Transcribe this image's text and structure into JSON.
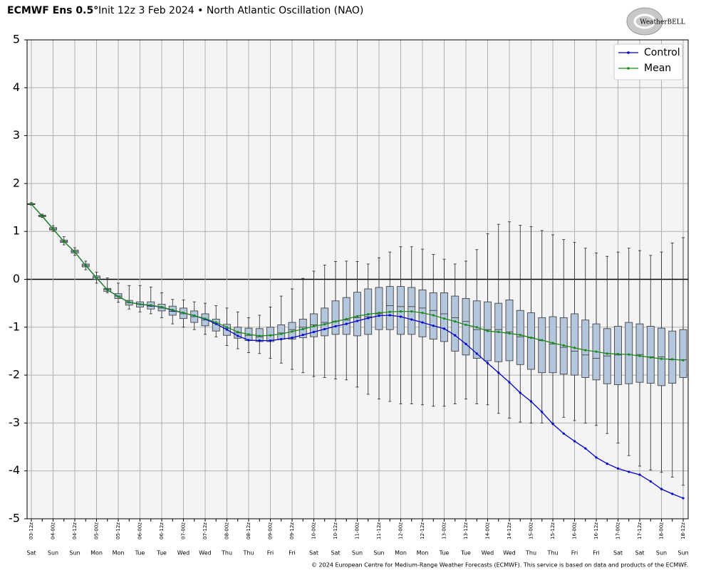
{
  "chart_data": {
    "type": "box",
    "title": "ECMWF Ens 0.5°",
    "subtitle": "Init 12z 3 Feb 2024 • North Atlantic Oscillation (NAO)",
    "logo": "WeatherBELL",
    "credit": "© 2024 European Centre for Medium-Range Weather Forecasts (ECMWF). This service is based on data and products of the ECMWF.",
    "categories": [
      "03-12z",
      null,
      "04-00z",
      null,
      "04-12z",
      null,
      "05-00z",
      null,
      "05-12z",
      null,
      "06-00z",
      null,
      "06-12z",
      null,
      "07-00z",
      null,
      "07-12z",
      null,
      "08-00z",
      null,
      "08-12z",
      null,
      "09-00z",
      null,
      "09-12z",
      null,
      "10-00z",
      null,
      "10-12z",
      null,
      "11-00z",
      null,
      "11-12z",
      null,
      "12-00z",
      null,
      "12-12z",
      null,
      "13-00z",
      null,
      "13-12z",
      null,
      "14-00z",
      null,
      "14-12z",
      null,
      "15-00z",
      null,
      "15-12z",
      null,
      "16-00z",
      null,
      "16-12z",
      null,
      "17-00z",
      null,
      "17-12z",
      null,
      "18-00z",
      null,
      "18-12z"
    ],
    "day_labels": [
      "Sat",
      null,
      "Sun",
      null,
      "Sun",
      null,
      "Mon",
      null,
      "Mon",
      null,
      "Tue",
      null,
      "Tue",
      null,
      "Wed",
      null,
      "Wed",
      null,
      "Thu",
      null,
      "Thu",
      null,
      "Fri",
      null,
      "Fri",
      null,
      "Sat",
      null,
      "Sat",
      null,
      "Sun",
      null,
      "Sun",
      null,
      "Mon",
      null,
      "Mon",
      null,
      "Tue",
      null,
      "Tue",
      null,
      "Wed",
      null,
      "Wed",
      null,
      "Thu",
      null,
      "Thu",
      null,
      "Fri",
      null,
      "Fri",
      null,
      "Sat",
      null,
      "Sat",
      null,
      "Sun",
      null,
      "Sun"
    ],
    "ylim": [
      -5,
      5
    ],
    "yticks": [
      -5,
      -4,
      -3,
      -2,
      -1,
      0,
      1,
      2,
      3,
      4,
      5
    ],
    "grid": true,
    "legend": "upper right",
    "box_color": "#b4c6dc",
    "boxes": [
      {
        "min": 1.55,
        "q1": 1.56,
        "median": 1.57,
        "q3": 1.58,
        "max": 1.6
      },
      {
        "min": 1.29,
        "q1": 1.31,
        "median": 1.32,
        "q3": 1.34,
        "max": 1.36
      },
      {
        "min": 1.0,
        "q1": 1.03,
        "median": 1.05,
        "q3": 1.08,
        "max": 1.12
      },
      {
        "min": 0.72,
        "q1": 0.77,
        "median": 0.79,
        "q3": 0.82,
        "max": 0.89
      },
      {
        "min": 0.5,
        "q1": 0.55,
        "median": 0.58,
        "q3": 0.61,
        "max": 0.66
      },
      {
        "min": 0.2,
        "q1": 0.26,
        "median": 0.29,
        "q3": 0.32,
        "max": 0.38
      },
      {
        "min": -0.08,
        "q1": 0.0,
        "median": 0.04,
        "q3": 0.07,
        "max": 0.15
      },
      {
        "min": -0.28,
        "q1": -0.25,
        "median": -0.21,
        "q3": -0.19,
        "max": 0.03
      },
      {
        "min": -0.48,
        "q1": -0.4,
        "median": -0.35,
        "q3": -0.3,
        "max": -0.08
      },
      {
        "min": -0.62,
        "q1": -0.54,
        "median": -0.49,
        "q3": -0.44,
        "max": -0.13
      },
      {
        "min": -0.68,
        "q1": -0.58,
        "median": -0.52,
        "q3": -0.47,
        "max": -0.13
      },
      {
        "min": -0.72,
        "q1": -0.62,
        "median": -0.56,
        "q3": -0.47,
        "max": -0.16
      },
      {
        "min": -0.8,
        "q1": -0.66,
        "median": -0.6,
        "q3": -0.52,
        "max": -0.28
      },
      {
        "min": -0.93,
        "q1": -0.75,
        "median": -0.67,
        "q3": -0.56,
        "max": -0.42
      },
      {
        "min": -1.0,
        "q1": -0.82,
        "median": -0.72,
        "q3": -0.6,
        "max": -0.43
      },
      {
        "min": -1.05,
        "q1": -0.9,
        "median": -0.78,
        "q3": -0.66,
        "max": -0.47
      },
      {
        "min": -1.15,
        "q1": -0.97,
        "median": -0.85,
        "q3": -0.72,
        "max": -0.5
      },
      {
        "min": -1.2,
        "q1": -1.08,
        "median": -0.92,
        "q3": -0.83,
        "max": -0.55
      },
      {
        "min": -1.38,
        "q1": -1.17,
        "median": -1.02,
        "q3": -0.94,
        "max": -0.6
      },
      {
        "min": -1.45,
        "q1": -1.23,
        "median": -1.12,
        "q3": -1.0,
        "max": -0.68
      },
      {
        "min": -1.53,
        "q1": -1.28,
        "median": -1.17,
        "q3": -1.02,
        "max": -0.8
      },
      {
        "min": -1.55,
        "q1": -1.3,
        "median": -1.2,
        "q3": -1.03,
        "max": -0.75
      },
      {
        "min": -1.65,
        "q1": -1.3,
        "median": -1.17,
        "q3": -1.0,
        "max": -0.58
      },
      {
        "min": -1.75,
        "q1": -1.25,
        "median": -1.12,
        "q3": -0.95,
        "max": -0.35
      },
      {
        "min": -1.88,
        "q1": -1.25,
        "median": -1.05,
        "q3": -0.9,
        "max": -0.2
      },
      {
        "min": -1.95,
        "q1": -1.22,
        "median": -1.0,
        "q3": -0.83,
        "max": 0.02
      },
      {
        "min": -2.03,
        "q1": -1.2,
        "median": -0.95,
        "q3": -0.72,
        "max": 0.17
      },
      {
        "min": -2.05,
        "q1": -1.18,
        "median": -0.9,
        "q3": -0.6,
        "max": 0.3
      },
      {
        "min": -2.08,
        "q1": -1.15,
        "median": -0.88,
        "q3": -0.45,
        "max": 0.37
      },
      {
        "min": -2.1,
        "q1": -1.15,
        "median": -0.85,
        "q3": -0.38,
        "max": 0.38
      },
      {
        "min": -2.25,
        "q1": -1.18,
        "median": -0.8,
        "q3": -0.27,
        "max": 0.37
      },
      {
        "min": -2.4,
        "q1": -1.15,
        "median": -0.78,
        "q3": -0.2,
        "max": 0.32
      },
      {
        "min": -2.5,
        "q1": -1.05,
        "median": -0.72,
        "q3": -0.17,
        "max": 0.45
      },
      {
        "min": -2.55,
        "q1": -1.05,
        "median": -0.55,
        "q3": -0.15,
        "max": 0.57
      },
      {
        "min": -2.6,
        "q1": -1.15,
        "median": -0.57,
        "q3": -0.15,
        "max": 0.68
      },
      {
        "min": -2.6,
        "q1": -1.15,
        "median": -0.57,
        "q3": -0.17,
        "max": 0.68
      },
      {
        "min": -2.62,
        "q1": -1.2,
        "median": -0.6,
        "q3": -0.22,
        "max": 0.63
      },
      {
        "min": -2.65,
        "q1": -1.25,
        "median": -0.65,
        "q3": -0.28,
        "max": 0.52
      },
      {
        "min": -2.65,
        "q1": -1.3,
        "median": -0.72,
        "q3": -0.28,
        "max": 0.42
      },
      {
        "min": -2.6,
        "q1": -1.5,
        "median": -0.8,
        "q3": -0.35,
        "max": 0.32
      },
      {
        "min": -2.5,
        "q1": -1.58,
        "median": -0.88,
        "q3": -0.4,
        "max": 0.38
      },
      {
        "min": -2.6,
        "q1": -1.65,
        "median": -1.05,
        "q3": -0.45,
        "max": 0.62
      },
      {
        "min": -2.62,
        "q1": -1.7,
        "median": -1.05,
        "q3": -0.47,
        "max": 0.95
      },
      {
        "min": -2.8,
        "q1": -1.72,
        "median": -1.05,
        "q3": -0.5,
        "max": 1.15
      },
      {
        "min": -2.9,
        "q1": -1.7,
        "median": -1.1,
        "q3": -0.43,
        "max": 1.2
      },
      {
        "min": -2.98,
        "q1": -1.78,
        "median": -1.2,
        "q3": -0.65,
        "max": 1.13
      },
      {
        "min": -3.0,
        "q1": -1.88,
        "median": -1.22,
        "q3": -0.7,
        "max": 1.1
      },
      {
        "min": -3.0,
        "q1": -1.95,
        "median": -1.28,
        "q3": -0.8,
        "max": 1.02
      },
      {
        "min": -3.0,
        "q1": -1.95,
        "median": -1.35,
        "q3": -0.78,
        "max": 0.93
      },
      {
        "min": -2.88,
        "q1": -1.98,
        "median": -1.42,
        "q3": -0.8,
        "max": 0.83
      },
      {
        "min": -2.95,
        "q1": -2.0,
        "median": -1.5,
        "q3": -0.72,
        "max": 0.77
      },
      {
        "min": -3.0,
        "q1": -2.05,
        "median": -1.58,
        "q3": -0.85,
        "max": 0.65
      },
      {
        "min": -3.05,
        "q1": -2.1,
        "median": -1.65,
        "q3": -0.93,
        "max": 0.55
      },
      {
        "min": -3.22,
        "q1": -2.18,
        "median": -1.6,
        "q3": -1.03,
        "max": 0.48
      },
      {
        "min": -3.42,
        "q1": -2.2,
        "median": -1.58,
        "q3": -0.98,
        "max": 0.57
      },
      {
        "min": -3.68,
        "q1": -2.18,
        "median": -1.57,
        "q3": -0.9,
        "max": 0.65
      },
      {
        "min": -3.9,
        "q1": -2.15,
        "median": -1.57,
        "q3": -0.93,
        "max": 0.6
      },
      {
        "min": -3.98,
        "q1": -2.17,
        "median": -1.62,
        "q3": -0.98,
        "max": 0.5
      },
      {
        "min": -4.03,
        "q1": -2.22,
        "median": -1.62,
        "q3": -1.02,
        "max": 0.57
      },
      {
        "min": -4.13,
        "q1": -2.17,
        "median": -1.68,
        "q3": -1.08,
        "max": 0.76
      },
      {
        "min": -4.3,
        "q1": -2.05,
        "median": -1.68,
        "q3": -1.05,
        "max": 0.87
      }
    ],
    "series": [
      {
        "name": "Control",
        "color": "#0000cc",
        "values": [
          1.57,
          1.32,
          1.05,
          0.79,
          0.57,
          0.29,
          0.03,
          -0.22,
          -0.36,
          -0.48,
          -0.52,
          -0.55,
          -0.58,
          -0.65,
          -0.7,
          -0.76,
          -0.83,
          -0.93,
          -1.05,
          -1.18,
          -1.27,
          -1.28,
          -1.28,
          -1.25,
          -1.22,
          -1.16,
          -1.1,
          -1.04,
          -0.98,
          -0.93,
          -0.87,
          -0.81,
          -0.76,
          -0.75,
          -0.78,
          -0.84,
          -0.9,
          -0.97,
          -1.03,
          -1.17,
          -1.35,
          -1.55,
          -1.75,
          -1.95,
          -2.15,
          -2.37,
          -2.55,
          -2.77,
          -3.02,
          -3.22,
          -3.38,
          -3.53,
          -3.72,
          -3.85,
          -3.95,
          -4.02,
          -4.08,
          -4.22,
          -4.38,
          -4.48,
          -4.57
        ]
      },
      {
        "name": "Mean",
        "color": "#1a8a1a",
        "values": [
          1.57,
          1.32,
          1.05,
          0.79,
          0.57,
          0.29,
          0.03,
          -0.22,
          -0.36,
          -0.48,
          -0.52,
          -0.54,
          -0.58,
          -0.64,
          -0.7,
          -0.76,
          -0.82,
          -0.9,
          -1.0,
          -1.1,
          -1.15,
          -1.18,
          -1.17,
          -1.14,
          -1.09,
          -1.04,
          -0.98,
          -0.94,
          -0.88,
          -0.83,
          -0.77,
          -0.73,
          -0.7,
          -0.68,
          -0.67,
          -0.67,
          -0.7,
          -0.75,
          -0.82,
          -0.88,
          -0.95,
          -1.0,
          -1.08,
          -1.1,
          -1.13,
          -1.16,
          -1.22,
          -1.27,
          -1.33,
          -1.38,
          -1.43,
          -1.48,
          -1.51,
          -1.55,
          -1.56,
          -1.57,
          -1.6,
          -1.63,
          -1.66,
          -1.67,
          -1.69
        ]
      }
    ]
  }
}
